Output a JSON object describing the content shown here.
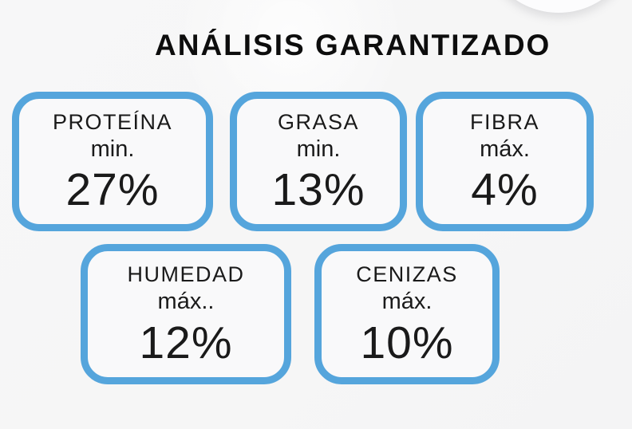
{
  "colors": {
    "background": "#f6f6f6",
    "accent": "#55a5dc",
    "title": "#0d0d0d",
    "text": "#1a1a1a",
    "box_fill": "#f9f9fa"
  },
  "title": {
    "text": "ANÁLISIS GARANTIZADO"
  },
  "boxes": [
    {
      "id": "proteina",
      "label": "PROTEÍNA",
      "qualifier": "min.",
      "value": "27%"
    },
    {
      "id": "grasa",
      "label": "GRASA",
      "qualifier": "min.",
      "value": "13%"
    },
    {
      "id": "fibra",
      "label": "FIBRA",
      "qualifier": "máx.",
      "value": "4%"
    },
    {
      "id": "humedad",
      "label": "HUMEDAD",
      "qualifier": "máx..",
      "value": "12%"
    },
    {
      "id": "cenizas",
      "label": "CENIZAS",
      "qualifier": "máx.",
      "value": "10%"
    }
  ]
}
